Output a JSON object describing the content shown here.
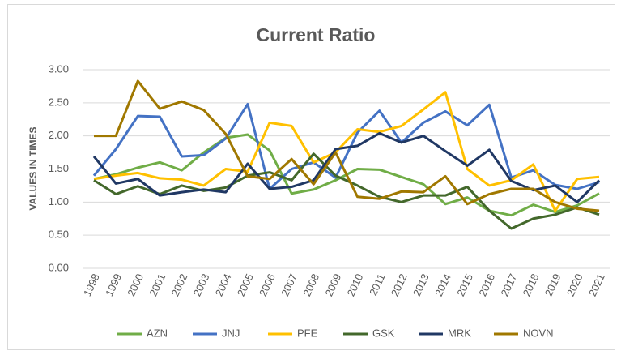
{
  "chart_data": {
    "type": "line",
    "title": "Current Ratio",
    "y_label": "VALUES IN TIMES",
    "categories": [
      "1998",
      "1999",
      "2000",
      "2001",
      "2002",
      "2003",
      "2004",
      "2005",
      "2006",
      "2007",
      "2008",
      "2009",
      "2010",
      "2011",
      "2012",
      "2013",
      "2014",
      "2015",
      "2016",
      "2017",
      "2018",
      "2019",
      "2020",
      "2021"
    ],
    "series": [
      {
        "name": "AZN",
        "color": "#70ad47",
        "values": [
          1.35,
          1.42,
          1.52,
          1.6,
          1.48,
          1.75,
          1.97,
          2.02,
          1.78,
          1.13,
          1.19,
          1.33,
          1.5,
          1.49,
          1.38,
          1.27,
          0.97,
          1.07,
          0.87,
          0.8,
          0.96,
          0.85,
          0.95,
          1.13
        ]
      },
      {
        "name": "JNJ",
        "color": "#4472c4",
        "values": [
          1.4,
          1.8,
          2.3,
          2.29,
          1.69,
          1.71,
          1.96,
          2.48,
          1.2,
          1.5,
          1.6,
          1.37,
          2.05,
          2.38,
          1.9,
          2.2,
          2.37,
          2.16,
          2.47,
          1.37,
          1.48,
          1.26,
          1.2,
          1.3
        ]
      },
      {
        "name": "PFE",
        "color": "#ffc000",
        "values": [
          1.35,
          1.4,
          1.44,
          1.36,
          1.34,
          1.25,
          1.5,
          1.46,
          2.2,
          2.15,
          1.6,
          1.75,
          2.1,
          2.06,
          2.15,
          2.4,
          2.66,
          1.5,
          1.25,
          1.33,
          1.57,
          0.87,
          1.35,
          1.38
        ]
      },
      {
        "name": "GSK",
        "color": "#43682b",
        "values": [
          1.33,
          1.12,
          1.24,
          1.12,
          1.25,
          1.17,
          1.22,
          1.4,
          1.45,
          1.33,
          1.73,
          1.4,
          1.25,
          1.08,
          1.0,
          1.1,
          1.1,
          1.23,
          0.87,
          0.6,
          0.75,
          0.81,
          0.92,
          0.81
        ]
      },
      {
        "name": "MRK",
        "color": "#203864",
        "values": [
          1.69,
          1.28,
          1.35,
          1.1,
          1.15,
          1.19,
          1.15,
          1.58,
          1.2,
          1.23,
          1.33,
          1.8,
          1.85,
          2.04,
          1.9,
          2.0,
          1.77,
          1.55,
          1.79,
          1.32,
          1.18,
          1.25,
          1.0,
          1.33
        ]
      },
      {
        "name": "NOVN",
        "color": "#a07800",
        "values": [
          2.0,
          2.0,
          2.83,
          2.41,
          2.52,
          2.39,
          2.03,
          1.39,
          1.35,
          1.65,
          1.27,
          1.75,
          1.08,
          1.05,
          1.16,
          1.15,
          1.39,
          0.97,
          1.12,
          1.2,
          1.2,
          1.0,
          0.9,
          0.87
        ]
      }
    ],
    "ylim": [
      0,
      3
    ],
    "yticks": [
      {
        "value": 0,
        "label": "0.00"
      },
      {
        "value": 0.5,
        "label": "0.50"
      },
      {
        "value": 1,
        "label": "1.00"
      },
      {
        "value": 1.5,
        "label": "1.50"
      },
      {
        "value": 2,
        "label": "2.00"
      },
      {
        "value": 2.5,
        "label": "2.50"
      },
      {
        "value": 3,
        "label": "3.00"
      }
    ],
    "grid": true,
    "legend": "bottom"
  }
}
